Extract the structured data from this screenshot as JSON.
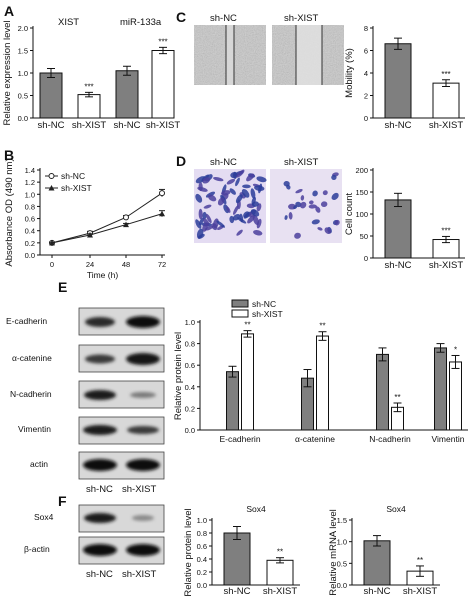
{
  "panels": {
    "A": "A",
    "B": "B",
    "C": "C",
    "D": "D",
    "E": "E",
    "F": "F"
  },
  "panel_a": {
    "group_xist": "XIST",
    "group_mir": "miR-133a",
    "bar_labels": [
      "sh-NC",
      "sh-XIST",
      "sh-NC",
      "sh-XIST"
    ]
  },
  "panel_c": {
    "img_left": "sh-NC",
    "img_right": "sh-XIST"
  },
  "panel_d": {
    "img_left": "sh-NC",
    "img_right": "sh-XIST"
  },
  "panel_e": {
    "blots": [
      "E-cadherin",
      "α-catenine",
      "N-cadherin",
      "Vimentin",
      "actin"
    ],
    "lanes": [
      "sh-NC",
      "sh-XIST"
    ]
  },
  "panel_f": {
    "blots": [
      "Sox4",
      "β-actin"
    ],
    "lanes": [
      "sh-NC",
      "sh-XIST"
    ]
  },
  "chart_data": [
    {
      "id": "A",
      "type": "bar",
      "categories": [
        "sh-NC",
        "sh-XIST",
        "sh-NC",
        "sh-XIST"
      ],
      "groups": [
        "XIST",
        "miR-133a"
      ],
      "values": [
        1.0,
        0.52,
        1.05,
        1.5
      ],
      "errors": [
        0.1,
        0.05,
        0.1,
        0.07
      ],
      "significance": [
        "",
        "***",
        "",
        "***"
      ],
      "colors": [
        "#7f7f7f",
        "#ffffff",
        "#7f7f7f",
        "#ffffff"
      ],
      "ylabel": "Relative expression level",
      "ylim": [
        0,
        2.0
      ],
      "yticks": [
        "0.0",
        "0.5",
        "1.0",
        "1.5",
        "2.0"
      ]
    },
    {
      "id": "B",
      "type": "line",
      "x": [
        0,
        24,
        48,
        72
      ],
      "series": [
        {
          "name": "sh-NC",
          "values": [
            0.2,
            0.36,
            0.62,
            1.02
          ],
          "errors": [
            0.01,
            0.03,
            0.03,
            0.06
          ],
          "marker": "circle-open"
        },
        {
          "name": "sh-XIST",
          "values": [
            0.2,
            0.33,
            0.5,
            0.68
          ],
          "errors": [
            0.01,
            0.02,
            0.02,
            0.05
          ],
          "marker": "triangle"
        }
      ],
      "xlabel": "Time (h)",
      "ylabel": "Absorbance OD (490 nm)",
      "ylim": [
        0,
        1.4
      ],
      "yticks": [
        "0.0",
        "0.2",
        "0.4",
        "0.6",
        "0.8",
        "1.0",
        "1.2",
        "1.4"
      ],
      "xticks": [
        "0",
        "24",
        "48",
        "72"
      ]
    },
    {
      "id": "C",
      "type": "bar",
      "categories": [
        "sh-NC",
        "sh-XIST"
      ],
      "values": [
        6.6,
        3.1
      ],
      "errors": [
        0.5,
        0.3
      ],
      "significance": [
        "",
        "***"
      ],
      "colors": [
        "#7f7f7f",
        "#ffffff"
      ],
      "ylabel": "Mobility (%)",
      "ylim": [
        0,
        8
      ],
      "yticks": [
        "0",
        "2",
        "4",
        "6",
        "8"
      ]
    },
    {
      "id": "D",
      "type": "bar",
      "categories": [
        "sh-NC",
        "sh-XIST"
      ],
      "values": [
        132,
        42
      ],
      "errors": [
        15,
        7
      ],
      "significance": [
        "",
        "***"
      ],
      "colors": [
        "#7f7f7f",
        "#ffffff"
      ],
      "ylabel": "Cell count",
      "ylim": [
        0,
        200
      ],
      "yticks": [
        "0",
        "50",
        "100",
        "150",
        "200"
      ]
    },
    {
      "id": "E",
      "type": "bar",
      "categories": [
        "E-cadherin",
        "α-catenine",
        "N-cadherin",
        "Vimentin"
      ],
      "series": [
        {
          "name": "sh-NC",
          "values": [
            0.54,
            0.48,
            0.7,
            0.76
          ],
          "errors": [
            0.05,
            0.08,
            0.06,
            0.04
          ],
          "color": "#7f7f7f"
        },
        {
          "name": "sh-XIST",
          "values": [
            0.89,
            0.87,
            0.21,
            0.63
          ],
          "errors": [
            0.03,
            0.04,
            0.04,
            0.06
          ],
          "color": "#ffffff"
        }
      ],
      "significance": [
        "**",
        "**",
        "**",
        "*"
      ],
      "ylabel": "Relative protein level",
      "ylim": [
        0,
        1.0
      ],
      "yticks": [
        "0.0",
        "0.2",
        "0.4",
        "0.6",
        "0.8",
        "1.0"
      ],
      "legend": "top-left"
    },
    {
      "id": "F1",
      "type": "bar",
      "title": "Sox4",
      "categories": [
        "sh-NC",
        "sh-XIST"
      ],
      "values": [
        0.8,
        0.38
      ],
      "errors": [
        0.1,
        0.04
      ],
      "significance": [
        "",
        "**"
      ],
      "colors": [
        "#7f7f7f",
        "#ffffff"
      ],
      "ylabel": "Relative protein level",
      "ylim": [
        0,
        1.0
      ],
      "yticks": [
        "0.0",
        "0.2",
        "0.4",
        "0.6",
        "0.8",
        "1.0"
      ]
    },
    {
      "id": "F2",
      "type": "bar",
      "title": "Sox4",
      "categories": [
        "sh-NC",
        "sh-XIST"
      ],
      "values": [
        1.02,
        0.32
      ],
      "errors": [
        0.12,
        0.12
      ],
      "significance": [
        "",
        "**"
      ],
      "colors": [
        "#7f7f7f",
        "#ffffff"
      ],
      "ylabel": "Relative mRNA level",
      "ylim": [
        0,
        1.5
      ],
      "yticks": [
        "0.0",
        "0.5",
        "1.0",
        "1.5"
      ]
    }
  ]
}
